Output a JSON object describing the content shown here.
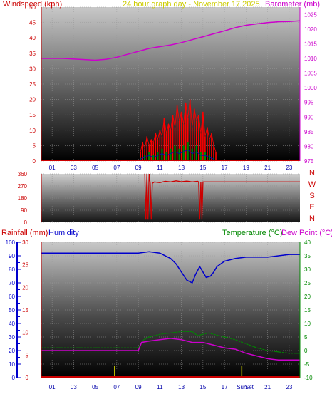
{
  "header": {
    "left_label": "Windspeed (kph)",
    "center_label": "24 hour graph day - November 17 2025",
    "right_label": "Barometer (mb)"
  },
  "colors": {
    "windspeed": "#cc0000",
    "gust": "#ff0000",
    "wind_avg": "#008800",
    "wind_blue": "#0000cc",
    "barometer": "#cc00cc",
    "direction": "#cc0000",
    "rainfall": "#cc0000",
    "humidity": "#0000cc",
    "temperature": "#008800",
    "dew_point": "#cc00cc",
    "title": "#cccc00",
    "sun_marker": "#cccc00"
  },
  "chart_data": [
    {
      "type": "line",
      "y_left": {
        "label": "Windspeed (kph)",
        "ticks": [
          0,
          5,
          10,
          15,
          20,
          25,
          30,
          35,
          40,
          45,
          50
        ],
        "range": [
          0,
          50
        ]
      },
      "y_right": {
        "label": "Barometer (mb)",
        "ticks": [
          975,
          980,
          985,
          990,
          995,
          1000,
          1005,
          1010,
          1015,
          1020,
          1025
        ],
        "range": [
          975,
          1027.5
        ]
      },
      "x_ticks": [
        "01",
        "03",
        "05",
        "07",
        "09",
        "11",
        "13",
        "15",
        "17",
        "19",
        "21",
        "23"
      ],
      "grid": true,
      "series": [
        {
          "name": "Barometer (mb)",
          "axis": "right",
          "x": [
            0,
            2,
            4,
            5,
            6,
            7,
            8,
            9,
            10,
            11,
            12,
            13,
            14,
            15,
            16,
            17,
            18,
            19,
            20,
            21,
            22,
            23,
            24
          ],
          "values": [
            1010,
            1010,
            1009.6,
            1009.4,
            1009.7,
            1010.4,
            1011.4,
            1012.4,
            1013.4,
            1014.0,
            1014.6,
            1015.4,
            1016.4,
            1017.4,
            1018.4,
            1019.4,
            1020.5,
            1021.3,
            1021.8,
            1022.2,
            1022.5,
            1022.6,
            1022.8
          ]
        },
        {
          "name": "Gust",
          "axis": "left",
          "x": [
            9.2,
            9.4,
            9.6,
            9.8,
            10.0,
            10.2,
            10.4,
            10.6,
            10.8,
            11.0,
            11.2,
            11.4,
            11.6,
            11.8,
            12.0,
            12.2,
            12.4,
            12.6,
            12.8,
            13.0,
            13.2,
            13.4,
            13.6,
            13.8,
            14.0,
            14.2,
            14.4,
            14.6,
            14.8,
            15.0,
            15.2,
            15.4,
            15.6,
            15.8,
            16.0,
            16.2
          ],
          "values": [
            3,
            6,
            4,
            8,
            5,
            7,
            6,
            9,
            7,
            10,
            8,
            14,
            9,
            12,
            10,
            15,
            11,
            18,
            13,
            16,
            12,
            19,
            14,
            20,
            11,
            17,
            13,
            15,
            9,
            16,
            8,
            11,
            7,
            9,
            5,
            3
          ]
        },
        {
          "name": "Wind average",
          "axis": "left",
          "x": [
            9.2,
            9.6,
            10.0,
            10.4,
            10.8,
            11.2,
            11.6,
            12.0,
            12.4,
            12.8,
            13.2,
            13.6,
            14.0,
            14.4,
            14.8,
            15.2,
            15.6,
            16.0
          ],
          "values": [
            1,
            2,
            3,
            2,
            3,
            4,
            3,
            4,
            5,
            4,
            5,
            6,
            4,
            5,
            3,
            3,
            2,
            1
          ]
        }
      ]
    },
    {
      "type": "line",
      "y_left": {
        "ticks": [
          0,
          90,
          180,
          270,
          360
        ],
        "range": [
          0,
          360
        ]
      },
      "y_right_labels": [
        "N",
        "W",
        "S",
        "E",
        "N"
      ],
      "grid": true,
      "series": [
        {
          "name": "Wind direction",
          "x": [
            9.6,
            9.7,
            9.8,
            9.9,
            10.0,
            10.1,
            10.2,
            10.3,
            10.5,
            11.0,
            11.5,
            12.0,
            12.5,
            13.0,
            13.5,
            14.0,
            14.5,
            14.6,
            14.7,
            14.8,
            14.9,
            15.0,
            15.5,
            16.0,
            17.0,
            18.0,
            20.0,
            22.0,
            24.0
          ],
          "values": [
            360,
            20,
            360,
            20,
            360,
            290,
            20,
            290,
            300,
            295,
            305,
            300,
            308,
            302,
            306,
            300,
            305,
            300,
            20,
            300,
            20,
            300,
            300,
            300,
            300,
            300,
            300,
            300,
            300
          ]
        }
      ]
    },
    {
      "type": "line",
      "y_rain": {
        "label": "Rainfall (mm)",
        "ticks": [
          0,
          5,
          10,
          15,
          20,
          25,
          30
        ],
        "range": [
          0,
          30
        ]
      },
      "y_humidity": {
        "label": "Humidity",
        "ticks": [
          0,
          10,
          20,
          30,
          40,
          50,
          60,
          70,
          80,
          90,
          100
        ],
        "range": [
          0,
          100
        ]
      },
      "y_temp": {
        "label": "Temperature (°C)",
        "ticks": [
          -10,
          -5,
          0,
          5,
          10,
          15,
          20,
          25,
          30,
          35,
          40
        ],
        "range": [
          -10,
          40
        ]
      },
      "dew_label": "Dew Point (°C)",
      "x_ticks": [
        "01",
        "03",
        "05",
        "07",
        "09",
        "11",
        "13",
        "15",
        "17",
        "Sun",
        "Set",
        "21",
        "23"
      ],
      "sun_markers": [
        6.8,
        18.6
      ],
      "grid": true,
      "series": [
        {
          "name": "Humidity",
          "axis": "humidity",
          "x": [
            0,
            9,
            10,
            11,
            12,
            12.5,
            13,
            13.5,
            14,
            14.3,
            14.7,
            15,
            15.3,
            15.7,
            16,
            16.3,
            17,
            18,
            19,
            20,
            21,
            22,
            23,
            24
          ],
          "values": [
            92,
            92,
            93,
            92,
            88,
            84,
            78,
            72,
            70,
            76,
            82,
            78,
            74,
            75,
            78,
            82,
            86,
            88,
            89,
            89,
            89,
            90,
            91,
            91
          ]
        },
        {
          "name": "Temperature (°C)",
          "axis": "temp",
          "x": [
            0,
            9,
            9.5,
            10,
            11,
            12,
            13,
            14,
            14.5,
            15,
            15.5,
            16,
            17,
            18,
            19,
            20,
            21,
            22,
            23,
            24
          ],
          "values": [
            1,
            1,
            4,
            5,
            6,
            6.5,
            7,
            7,
            5.5,
            6,
            6.5,
            6,
            5,
            4,
            2.5,
            1,
            0,
            -0.5,
            -1,
            -1
          ]
        },
        {
          "name": "Dew Point (°C)",
          "axis": "temp",
          "x": [
            0,
            9,
            9.3,
            10,
            11,
            12,
            13,
            14,
            15,
            16,
            17,
            18,
            19,
            20,
            21,
            22,
            23,
            24
          ],
          "values": [
            0,
            0,
            3,
            3.5,
            4,
            4.5,
            4,
            3,
            3,
            2,
            1,
            0.5,
            -1,
            -2,
            -3,
            -3.5,
            -3.5,
            -3.5
          ]
        },
        {
          "name": "Rainfall (mm)",
          "axis": "rain",
          "x": [
            0,
            24
          ],
          "values": [
            0,
            0
          ]
        }
      ]
    }
  ]
}
